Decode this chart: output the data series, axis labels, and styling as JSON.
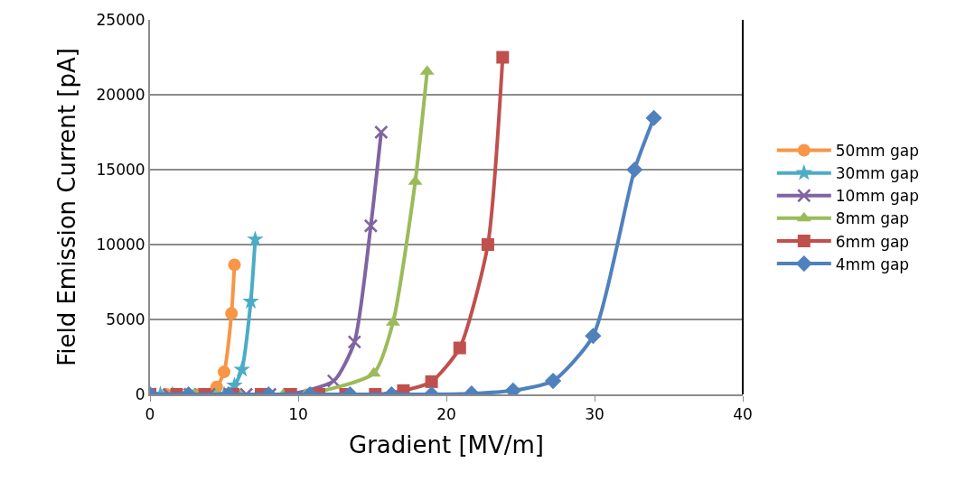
{
  "chart_data": {
    "type": "line",
    "xlabel": "Gradient [MV/m]",
    "ylabel": "Field Emission Current [pA]",
    "xlim": [
      0,
      40
    ],
    "xticks": [
      0,
      10,
      20,
      30,
      40
    ],
    "ylim": [
      0,
      25000
    ],
    "yticks": [
      0,
      5000,
      10000,
      15000,
      20000,
      25000
    ],
    "grid": "y",
    "legend": "right",
    "line_style": "solid",
    "series": [
      {
        "name": "50mm gap",
        "color": "#f79646",
        "marker": "circle",
        "x": [
          0,
          1.1,
          3.3,
          4.5,
          5.0,
          5.5,
          5.7
        ],
        "values": [
          0,
          0,
          0,
          500,
          1500,
          5400,
          8650
        ]
      },
      {
        "name": "30mm gap",
        "color": "#4bacc6",
        "marker": "star",
        "x": [
          0,
          0.7,
          1.5,
          5.0,
          5.7,
          6.2,
          6.8,
          7.1
        ],
        "values": [
          0,
          0,
          0,
          0,
          600,
          1650,
          6200,
          10350
        ]
      },
      {
        "name": "10mm gap",
        "color": "#8064a2",
        "marker": "cross",
        "x": [
          0,
          1.3,
          2.7,
          4.0,
          5.4,
          6.5,
          8.1,
          9.4,
          10.7,
          12.4,
          13.8,
          14.9,
          15.6
        ],
        "values": [
          0,
          0,
          0,
          0,
          0,
          0,
          0,
          0,
          null,
          900,
          3500,
          11250,
          17500
        ]
      },
      {
        "name": "8mm gap",
        "color": "#9bbb59",
        "marker": "triangle",
        "x": [
          0,
          1.5,
          3.0,
          4.5,
          6.0,
          9.0,
          10.5,
          12.0,
          13.5,
          15.1,
          16.4,
          17.9,
          18.7
        ],
        "values": [
          0,
          0,
          0,
          0,
          0,
          0,
          0,
          null,
          null,
          1400,
          4800,
          14200,
          21550
        ]
      },
      {
        "name": "6mm gap",
        "color": "#c0504d",
        "marker": "square",
        "x": [
          0,
          1.8,
          3.7,
          5.6,
          7.5,
          9.5,
          11.4,
          13.2,
          15.2,
          17.1,
          19.0,
          20.9,
          22.8,
          23.8
        ],
        "values": [
          0,
          0,
          0,
          0,
          0,
          0,
          0,
          0,
          0,
          250,
          850,
          3100,
          10000,
          22500
        ]
      },
      {
        "name": "4mm gap",
        "color": "#4f81bd",
        "marker": "diamond",
        "x": [
          0,
          2.6,
          5.3,
          8.0,
          10.8,
          13.5,
          16.3,
          19.0,
          21.7,
          24.5,
          27.2,
          29.9,
          32.7,
          34.0
        ],
        "values": [
          0,
          0,
          0,
          0,
          0,
          0,
          0,
          0,
          50,
          250,
          900,
          3900,
          15000,
          18450
        ]
      }
    ]
  }
}
